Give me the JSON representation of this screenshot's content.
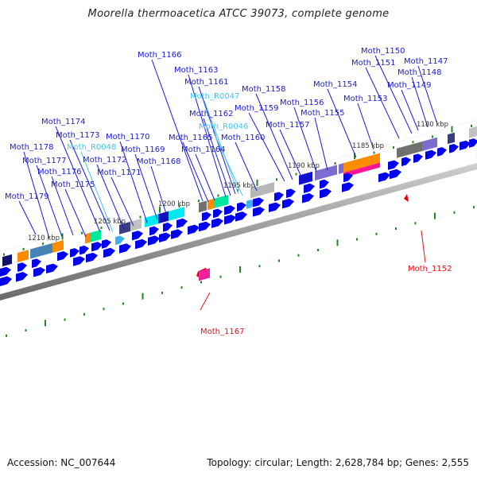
{
  "title": "Moorella thermoacetica ATCC 39073, complete genome",
  "footer": {
    "accession": "Accession: NC_007644",
    "summary": "Topology: circular; Length: 2,628,784 bp; Genes: 2,555"
  },
  "colors": {
    "gene_label": "#1a1adb",
    "rna_label": "#3fc6ee",
    "reverse_label": "#e8101a",
    "cds": "#0000ee",
    "tick": "#1e8a1e",
    "backbone": "#888888"
  },
  "scale_labels": [
    "1180 kbp",
    "1185 kbp",
    "1190 kbp",
    "1195 kbp",
    "1200 kbp",
    "1205 kbp",
    "1210 kbp"
  ],
  "forward_labels": [
    {
      "text": "Moth_1179",
      "kind": "gene"
    },
    {
      "text": "Moth_1178",
      "kind": "gene"
    },
    {
      "text": "Moth_1177",
      "kind": "gene"
    },
    {
      "text": "Moth_1176",
      "kind": "gene"
    },
    {
      "text": "Moth_1175",
      "kind": "gene"
    },
    {
      "text": "Moth_1174",
      "kind": "gene"
    },
    {
      "text": "Moth_1173",
      "kind": "gene"
    },
    {
      "text": "Moth_R0048",
      "kind": "rna"
    },
    {
      "text": "Moth_1172",
      "kind": "gene"
    },
    {
      "text": "Moth_1171",
      "kind": "gene"
    },
    {
      "text": "Moth_1170",
      "kind": "gene"
    },
    {
      "text": "Moth_1169",
      "kind": "gene"
    },
    {
      "text": "Moth_1168",
      "kind": "gene"
    },
    {
      "text": "Moth_1166",
      "kind": "gene"
    },
    {
      "text": "Moth_1165",
      "kind": "gene"
    },
    {
      "text": "Moth_1164",
      "kind": "gene"
    },
    {
      "text": "Moth_1163",
      "kind": "gene"
    },
    {
      "text": "Moth_1162",
      "kind": "gene"
    },
    {
      "text": "Moth_1161",
      "kind": "gene"
    },
    {
      "text": "Moth_R0047",
      "kind": "rna"
    },
    {
      "text": "Moth_R0046",
      "kind": "rna"
    },
    {
      "text": "Moth_1160",
      "kind": "gene"
    },
    {
      "text": "Moth_1159",
      "kind": "gene"
    },
    {
      "text": "Moth_1158",
      "kind": "gene"
    },
    {
      "text": "Moth_1157",
      "kind": "gene"
    },
    {
      "text": "Moth_1156",
      "kind": "gene"
    },
    {
      "text": "Moth_1155",
      "kind": "gene"
    },
    {
      "text": "Moth_1154",
      "kind": "gene"
    },
    {
      "text": "Moth_1153",
      "kind": "gene"
    },
    {
      "text": "Moth_1151",
      "kind": "gene"
    },
    {
      "text": "Moth_1150",
      "kind": "gene"
    },
    {
      "text": "Moth_1149",
      "kind": "gene"
    },
    {
      "text": "Moth_1148",
      "kind": "gene"
    },
    {
      "text": "Moth_1147",
      "kind": "gene"
    }
  ],
  "reverse_labels": [
    {
      "text": "Moth_1167",
      "kind": "reverse"
    },
    {
      "text": "Moth_1152",
      "kind": "reverse"
    }
  ]
}
